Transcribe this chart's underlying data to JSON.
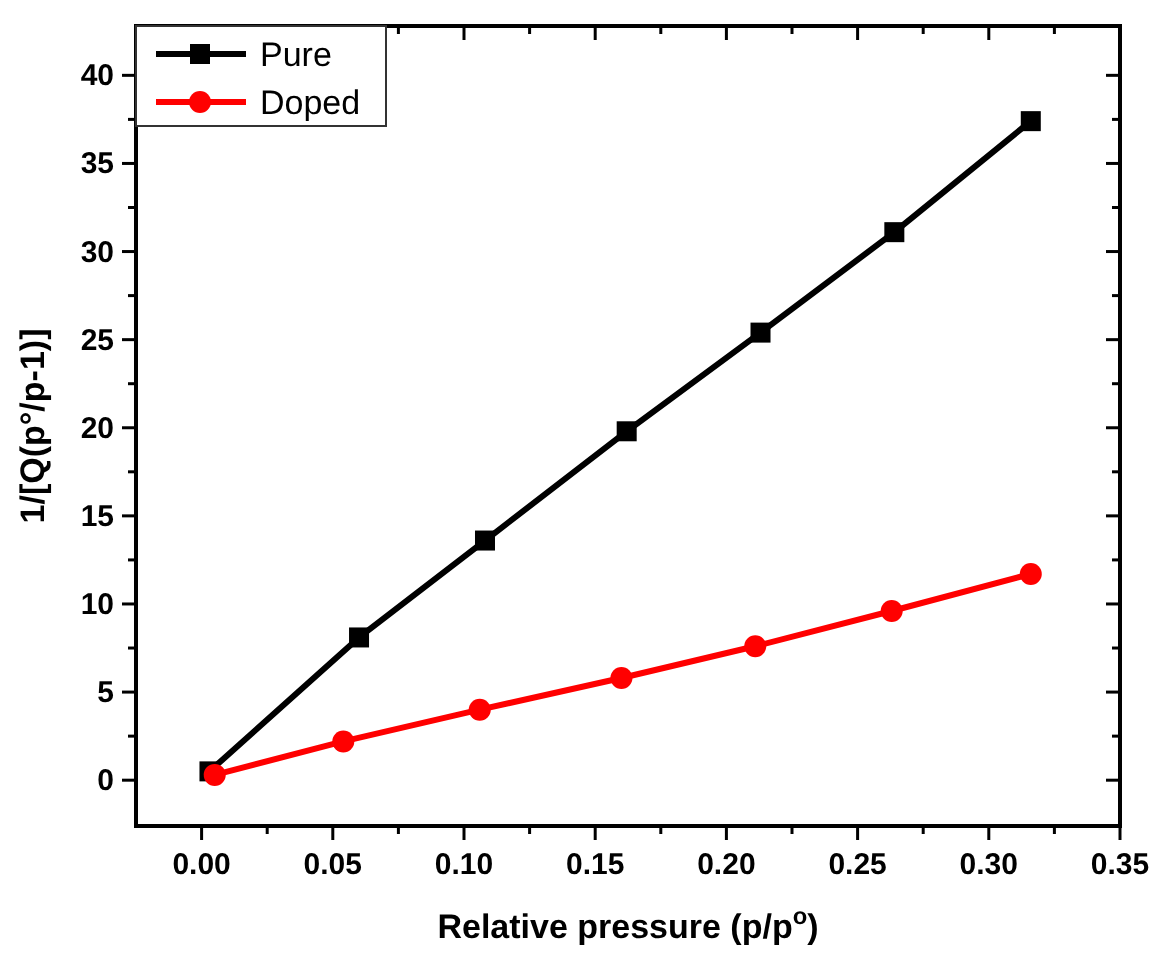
{
  "chart_data": {
    "type": "line",
    "xlabel": "Relative pressure (p/p$^{o}$)",
    "ylabel": "1/[Q(p°/p-1)]",
    "xlim": [
      -0.025,
      0.35
    ],
    "ylim": [
      -2.6,
      42.8
    ],
    "xticks": [
      {
        "value": 0,
        "label": "0.00"
      },
      {
        "value": 0.025,
        "label": null
      },
      {
        "value": 0.05,
        "label": "0.05"
      },
      {
        "value": 0.075,
        "label": null
      },
      {
        "value": 0.1,
        "label": "0.10"
      },
      {
        "value": 0.125,
        "label": null
      },
      {
        "value": 0.15,
        "label": "0.15"
      },
      {
        "value": 0.175,
        "label": null
      },
      {
        "value": 0.2,
        "label": "0.20"
      },
      {
        "value": 0.225,
        "label": null
      },
      {
        "value": 0.25,
        "label": "0.25"
      },
      {
        "value": 0.275,
        "label": null
      },
      {
        "value": 0.3,
        "label": "0.30"
      },
      {
        "value": 0.325,
        "label": null
      },
      {
        "value": 0.35,
        "label": "0.35"
      }
    ],
    "yticks": [
      0,
      {
        "value": 2.5,
        "label": null
      },
      5,
      {
        "value": 7.5,
        "label": null
      },
      10,
      {
        "value": 12.5,
        "label": null
      },
      15,
      {
        "value": 17.5,
        "label": null
      },
      20,
      {
        "value": 22.5,
        "label": null
      },
      25,
      {
        "value": 27.5,
        "label": null
      },
      30,
      {
        "value": 32.5,
        "label": null
      },
      35,
      {
        "value": 37.5,
        "label": null
      },
      40
    ],
    "legend": "top left",
    "grid": false,
    "series": [
      {
        "name": "Pure",
        "color": "#000000",
        "marker": "square",
        "x": [
          0.003,
          0.06,
          0.108,
          0.162,
          0.213,
          0.264,
          0.316
        ],
        "values": [
          0.5,
          8.1,
          13.6,
          19.8,
          25.4,
          31.1,
          37.4
        ]
      },
      {
        "name": "Doped",
        "color": "#ff0000",
        "marker": "circle",
        "x": [
          0.005,
          0.054,
          0.106,
          0.16,
          0.211,
          0.263,
          0.316
        ],
        "values": [
          0.3,
          2.2,
          4.0,
          5.8,
          7.6,
          9.6,
          11.7
        ]
      }
    ]
  }
}
